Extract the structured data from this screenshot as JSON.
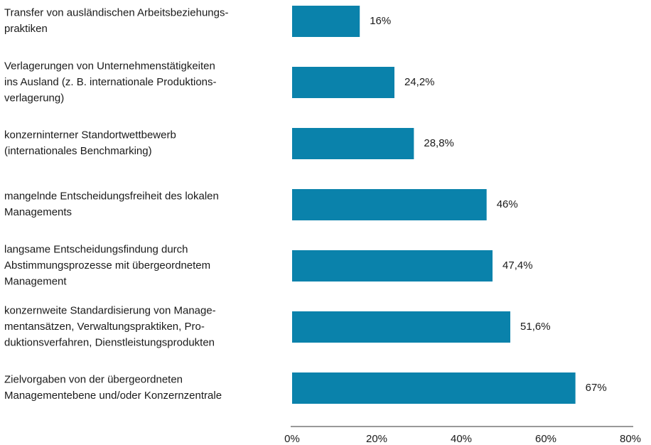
{
  "chart_data": {
    "type": "barh",
    "categories": [
      [
        "Transfer von ausländischen Arbeitsbeziehungs-",
        "praktiken"
      ],
      [
        "Verlagerungen von Unternehmenstätigkeiten",
        "ins Ausland (z. B. internationale Produktions-",
        "verlagerung)"
      ],
      [
        "konzerninterner Standortwettbewerb",
        "(internationales Benchmarking)"
      ],
      [
        "mangelnde Entscheidungsfreiheit des lokalen",
        "Managements"
      ],
      [
        "langsame Entscheidungsfindung durch",
        "Abstimmungsprozesse mit übergeordnetem",
        "Management"
      ],
      [
        "konzernweite Standardisierung von Manage-",
        "mentansätzen, Verwaltungspraktiken, Pro-",
        "duktionsverfahren, Dienstleistungsprodukten"
      ],
      [
        "Zielvorgaben von der übergeordneten",
        "Managementebene und/oder Konzernzentrale"
      ]
    ],
    "values": [
      16,
      24.2,
      28.8,
      46,
      47.4,
      51.6,
      67
    ],
    "value_labels": [
      "16%",
      "24,2%",
      "28,8%",
      "46%",
      "47,4%",
      "51,6%",
      "67%"
    ],
    "color": "#0a82ab",
    "xlim": [
      0,
      80
    ],
    "xticks": [
      {
        "value": 0,
        "label": "0%"
      },
      {
        "value": 20,
        "label": "20%"
      },
      {
        "value": 40,
        "label": "40%"
      },
      {
        "value": 60,
        "label": "60%"
      },
      {
        "value": 80,
        "label": "80%"
      }
    ]
  }
}
